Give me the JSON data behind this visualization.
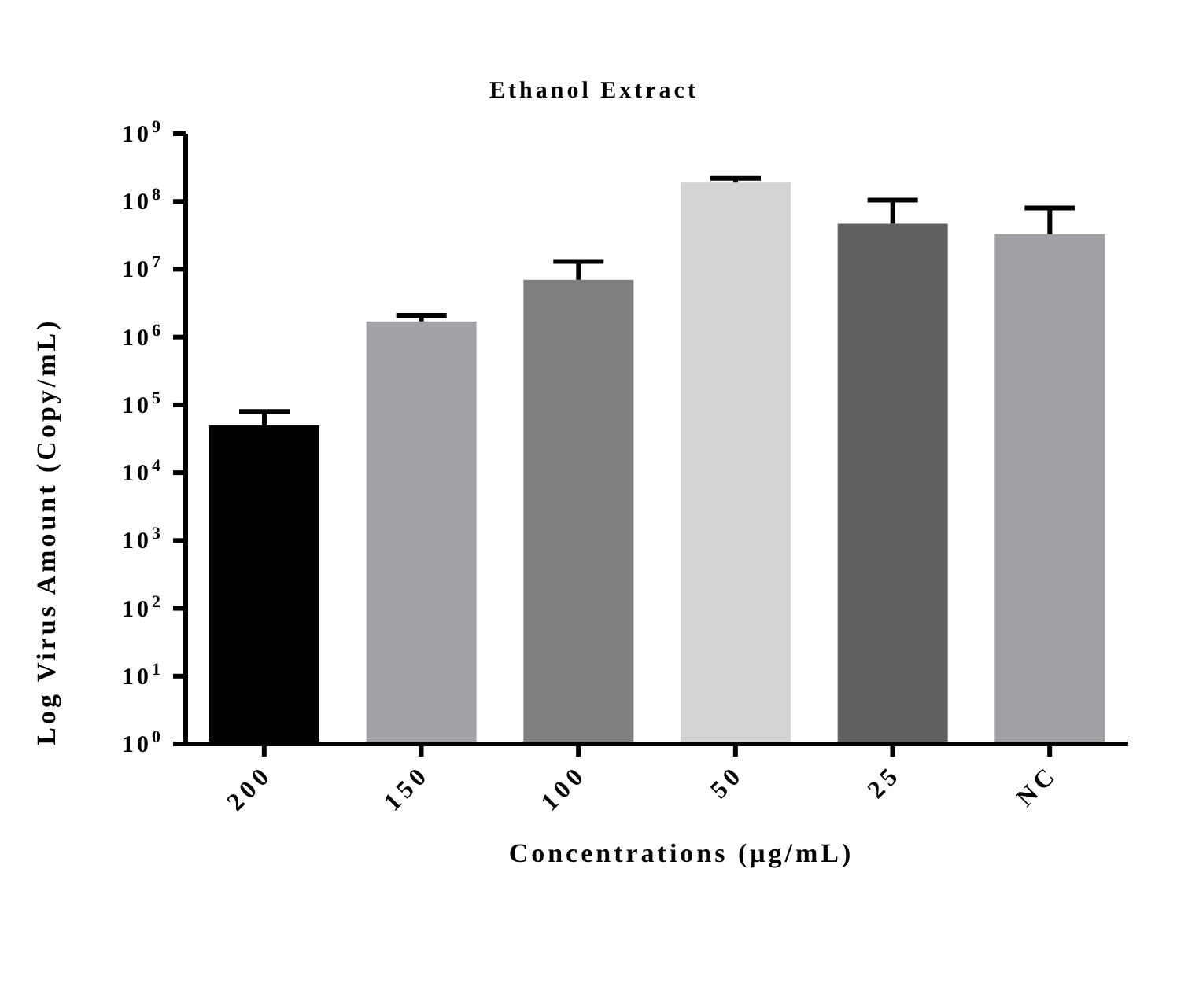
{
  "chart_data": {
    "type": "bar",
    "title": "Ethanol Extract",
    "xlabel": "Concentrations (μg/mL)",
    "ylabel": "Log Virus Amount (Copy/mL)",
    "categories": [
      "200",
      "150",
      "100",
      "50",
      "25",
      "NC"
    ],
    "values": [
      50000,
      1700000,
      7000000,
      190000000,
      47000000,
      33000000
    ],
    "colors": [
      "#000000",
      "#a3a3a7",
      "#808080",
      "#d4d4d4",
      "#606060",
      "#a0a0a4"
    ],
    "errors": [
      [
        50000,
        80000
      ],
      [
        1700000,
        2100000
      ],
      [
        7000000,
        13000000
      ],
      [
        190000000,
        220000000
      ],
      [
        47000000,
        105000000
      ],
      [
        33000000,
        80000000
      ]
    ],
    "log": true,
    "ylim": [
      1,
      1000000000
    ],
    "yticks": [
      {
        "value": 1,
        "label": "10$^{0}$"
      },
      {
        "value": 10,
        "label": "10$^{1}$"
      },
      {
        "value": 100,
        "label": "10$^{2}$"
      },
      {
        "value": 1000,
        "label": "10$^{3}$"
      },
      {
        "value": 10000,
        "label": "10$^{4}$"
      },
      {
        "value": 100000,
        "label": "10$^{5}$"
      },
      {
        "value": 1000000,
        "label": "10$^{6}$"
      },
      {
        "value": 10000000,
        "label": "10$^{7}$"
      },
      {
        "value": 100000000,
        "label": "10$^{8}$"
      },
      {
        "value": 1000000000,
        "label": "10$^{9}$"
      }
    ],
    "grid": false,
    "legend": false
  }
}
